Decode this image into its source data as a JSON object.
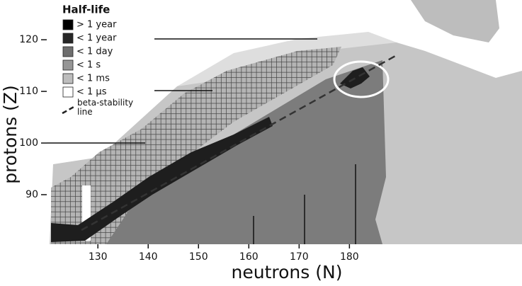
{
  "chart_data": {
    "type": "nuclide-chart",
    "xlabel": "neutrons (N)",
    "ylabel": "protons (Z)",
    "xlim": [
      120.4,
      214.3
    ],
    "ylim": [
      80.4,
      127.7
    ],
    "xticks": [
      130,
      140,
      150,
      160,
      170,
      180
    ],
    "yticks": [
      90,
      100,
      110,
      120
    ],
    "legend": {
      "title": "Half-life",
      "entries": [
        {
          "label": "> 1 year",
          "color": "#000000"
        },
        {
          "label": "< 1 year",
          "color": "#262626"
        },
        {
          "label": "< 1 day",
          "color": "#6e6e6e"
        },
        {
          "label": "< 1 s",
          "color": "#969696"
        },
        {
          "label": "< 1 ms",
          "color": "#bdbdbd"
        },
        {
          "label": "< 1 µs",
          "color": "#ffffff"
        }
      ],
      "line_label": "beta-stability line"
    }
  }
}
